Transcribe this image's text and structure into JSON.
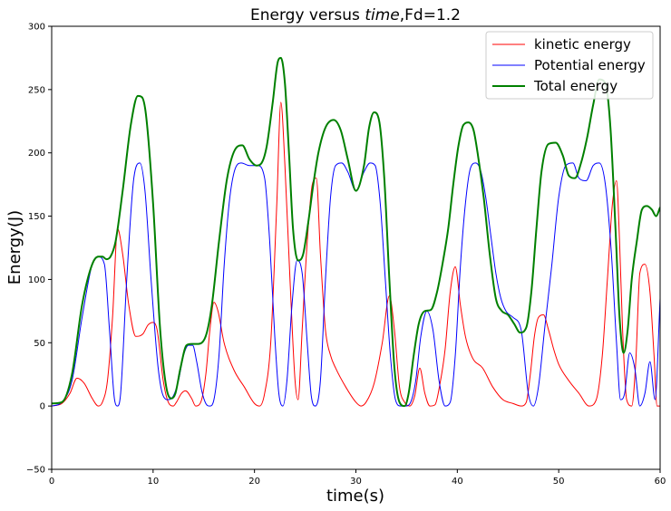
{
  "chart_data": {
    "type": "line",
    "title_prefix": "Energy versus ",
    "title_italic": "time",
    "title_suffix": ",Fd=1.2",
    "xlabel": "time(s)",
    "ylabel": "Energy(J)",
    "xlim": [
      0,
      60
    ],
    "ylim": [
      -50,
      300
    ],
    "xticks": [
      0,
      10,
      20,
      30,
      40,
      50,
      60
    ],
    "yticks": [
      -50,
      0,
      50,
      100,
      150,
      200,
      250,
      300
    ],
    "grid": false,
    "legend_position": "top-right",
    "series": [
      {
        "name": "kinetic energy",
        "color": "#ff0000",
        "x": [
          0,
          1.0,
          1.8,
          2.5,
          3.2,
          4.0,
          4.6,
          5.0,
          5.5,
          6.0,
          6.5,
          7.0,
          7.6,
          8.3,
          9.0,
          9.5,
          10.0,
          10.4,
          11.0,
          11.5,
          12.0,
          12.3,
          12.8,
          13.2,
          13.8,
          14.2,
          14.7,
          15.2,
          15.6,
          16.0,
          16.4,
          17.0,
          18.0,
          19.0,
          20.0,
          20.5,
          21.0,
          21.6,
          22.2,
          22.6,
          23.0,
          23.5,
          24.0,
          24.3,
          24.7,
          25.2,
          25.7,
          26.1,
          26.5,
          27.0,
          27.5,
          28.0,
          29.0,
          30.0,
          30.5,
          31.0,
          31.8,
          32.6,
          33.3,
          33.8,
          34.3,
          34.8,
          35.3,
          35.8,
          36.3,
          36.8,
          37.3,
          37.8,
          38.3,
          38.8,
          39.3,
          39.8,
          40.3,
          40.8,
          41.5,
          42.5,
          43.5,
          44.5,
          45.5,
          46.3,
          46.8,
          47.2,
          47.6,
          48.0,
          48.5,
          49.0,
          49.5,
          50.0,
          51.0,
          52.0,
          53.0,
          53.7,
          54.3,
          54.8,
          55.3,
          55.7,
          56.0,
          56.3,
          56.7,
          57.2,
          57.6,
          58.0,
          58.5,
          59.0,
          59.4,
          59.7,
          60.0
        ],
        "y": [
          0,
          2,
          10,
          22,
          18,
          6,
          0,
          3,
          20,
          70,
          140,
          120,
          80,
          55,
          57,
          64,
          66,
          60,
          20,
          3,
          0,
          3,
          10,
          12,
          6,
          0,
          3,
          25,
          60,
          82,
          75,
          50,
          28,
          15,
          2,
          0,
          10,
          50,
          160,
          240,
          190,
          100,
          20,
          5,
          60,
          130,
          175,
          180,
          120,
          60,
          40,
          30,
          15,
          3,
          0,
          3,
          18,
          50,
          87,
          60,
          15,
          3,
          0,
          8,
          30,
          10,
          0,
          1,
          18,
          45,
          90,
          110,
          80,
          55,
          38,
          30,
          15,
          5,
          2,
          0,
          3,
          25,
          55,
          70,
          72,
          60,
          45,
          33,
          20,
          10,
          0,
          5,
          40,
          100,
          160,
          178,
          130,
          60,
          5,
          0,
          35,
          105,
          112,
          90,
          40,
          0,
          0
        ]
      },
      {
        "name": "Potential energy",
        "color": "#0000ff",
        "x": [
          0,
          1.0,
          2.0,
          3.0,
          4.0,
          4.6,
          5.2,
          5.7,
          6.2,
          6.5,
          6.8,
          7.4,
          8.1,
          8.7,
          9.2,
          9.8,
          10.5,
          11.0,
          11.5,
          12.0,
          12.5,
          13.0,
          13.5,
          13.9,
          14.3,
          14.8,
          15.2,
          15.6,
          16.0,
          16.5,
          17.0,
          17.5,
          18.0,
          18.7,
          19.5,
          20.3,
          21.0,
          21.5,
          22.0,
          22.4,
          22.8,
          23.2,
          23.7,
          24.2,
          24.7,
          25.2,
          25.6,
          26.0,
          26.5,
          27.0,
          27.5,
          28.0,
          28.6,
          29.2,
          30.0,
          30.8,
          31.4,
          31.9,
          32.4,
          32.9,
          33.4,
          33.9,
          34.4,
          34.9,
          35.4,
          35.9,
          36.4,
          37.0,
          37.6,
          38.2,
          38.8,
          39.3,
          39.8,
          40.3,
          40.8,
          41.3,
          41.8,
          42.3,
          42.8,
          43.3,
          43.8,
          44.3,
          44.8,
          45.5,
          46.3,
          47.0,
          47.5,
          48.0,
          48.6,
          49.3,
          50.0,
          50.7,
          51.4,
          52.0,
          52.7,
          53.4,
          54.0,
          54.6,
          55.2,
          55.7,
          56.1,
          56.5,
          57.0,
          57.5,
          58.0,
          58.5,
          59.0,
          59.5,
          60.0
        ],
        "y": [
          0,
          3,
          20,
          70,
          112,
          118,
          112,
          60,
          5,
          0,
          10,
          100,
          180,
          192,
          170,
          100,
          30,
          8,
          5,
          8,
          20,
          40,
          48,
          48,
          35,
          12,
          2,
          0,
          5,
          40,
          110,
          160,
          185,
          192,
          190,
          190,
          180,
          130,
          55,
          10,
          0,
          20,
          80,
          115,
          105,
          50,
          8,
          0,
          20,
          100,
          165,
          190,
          192,
          185,
          170,
          185,
          192,
          190,
          160,
          100,
          40,
          5,
          0,
          0,
          3,
          20,
          55,
          75,
          60,
          20,
          0,
          3,
          40,
          110,
          160,
          188,
          192,
          186,
          165,
          135,
          105,
          85,
          75,
          70,
          60,
          10,
          0,
          15,
          60,
          110,
          165,
          190,
          192,
          180,
          178,
          190,
          192,
          175,
          120,
          50,
          5,
          10,
          42,
          30,
          0,
          10,
          35,
          5,
          85
        ]
      },
      {
        "name": "Total energy",
        "color": "#008000",
        "x": [
          0,
          1.0,
          2.0,
          3.0,
          4.0,
          4.6,
          5.0,
          5.4,
          5.8,
          6.3,
          7.0,
          7.8,
          8.5,
          8.9,
          9.3,
          10.0,
          10.7,
          11.3,
          11.8,
          12.2,
          12.7,
          13.3,
          13.8,
          14.3,
          14.8,
          15.3,
          15.8,
          16.5,
          17.3,
          18.2,
          18.8,
          19.5,
          20.2,
          20.7,
          21.2,
          21.8,
          22.3,
          22.6,
          23.0,
          23.4,
          23.8,
          24.3,
          24.8,
          25.3,
          25.8,
          26.3,
          27.0,
          27.8,
          28.5,
          29.2,
          30.0,
          30.8,
          31.3,
          31.8,
          32.3,
          32.8,
          33.3,
          33.8,
          34.3,
          34.8,
          35.2,
          35.7,
          36.2,
          36.8,
          37.4,
          38.0,
          38.6,
          39.1,
          39.6,
          40.1,
          40.6,
          41.1,
          41.6,
          42.0,
          42.6,
          43.2,
          43.8,
          44.4,
          45.0,
          45.6,
          46.2,
          46.8,
          47.3,
          47.8,
          48.3,
          49.0,
          49.7,
          50.4,
          51.0,
          51.6,
          52.2,
          52.8,
          53.4,
          54.0,
          54.6,
          55.1,
          55.6,
          56.0,
          56.4,
          56.8,
          57.2,
          57.7,
          58.2,
          58.7,
          59.2,
          59.6,
          60.0
        ],
        "y": [
          2,
          3,
          25,
          80,
          112,
          118,
          118,
          116,
          118,
          130,
          170,
          222,
          245,
          244,
          230,
          160,
          60,
          15,
          6,
          10,
          30,
          48,
          49,
          49,
          50,
          58,
          80,
          130,
          180,
          204,
          206,
          195,
          190,
          192,
          205,
          240,
          272,
          275,
          255,
          200,
          140,
          115,
          120,
          145,
          175,
          200,
          220,
          226,
          218,
          195,
          170,
          190,
          220,
          232,
          225,
          180,
          100,
          30,
          3,
          0,
          10,
          40,
          65,
          75,
          76,
          90,
          115,
          140,
          175,
          205,
          222,
          224,
          218,
          200,
          165,
          120,
          85,
          75,
          72,
          65,
          58,
          62,
          90,
          140,
          185,
          207,
          208,
          198,
          182,
          180,
          192,
          212,
          238,
          258,
          255,
          220,
          140,
          70,
          42,
          60,
          100,
          130,
          155,
          158,
          155,
          150,
          157
        ]
      }
    ]
  }
}
